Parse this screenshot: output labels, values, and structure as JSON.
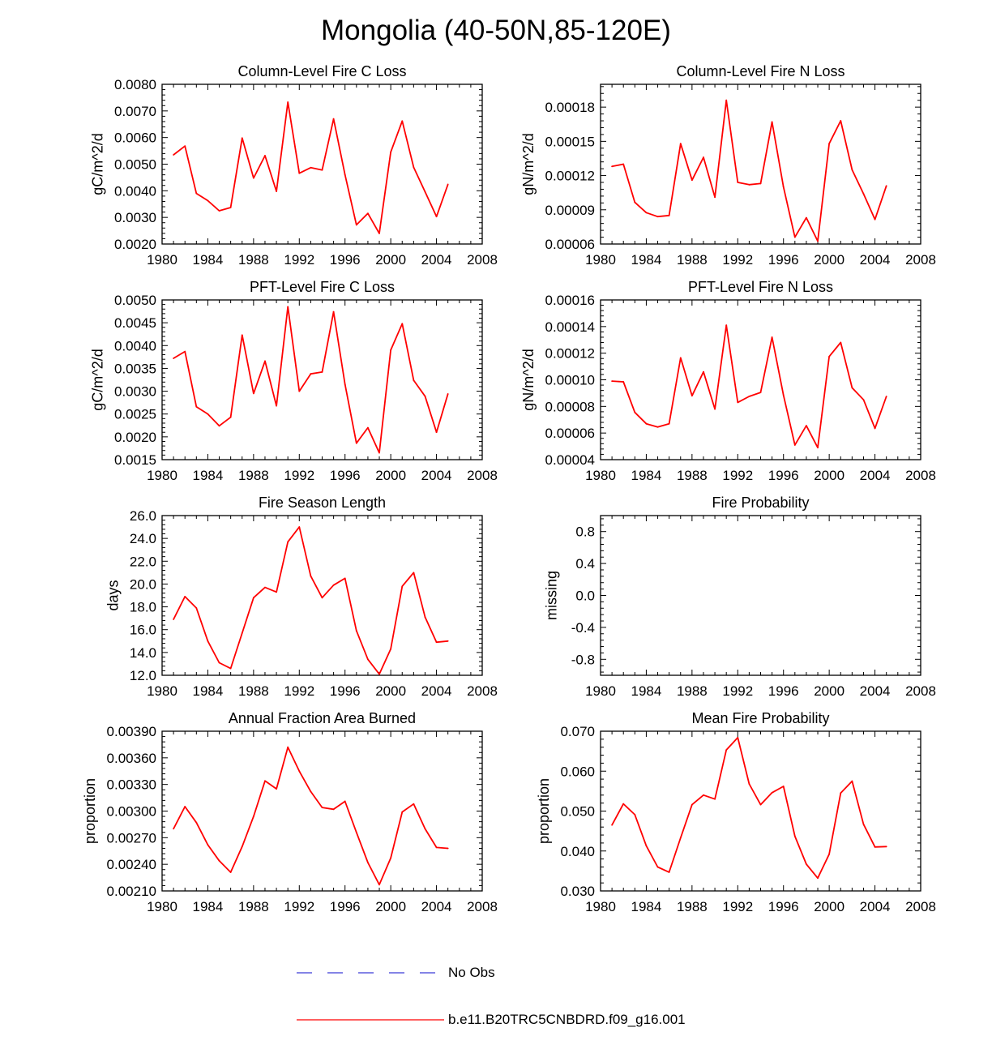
{
  "title": "Mongolia (40-50N,85-120E)",
  "legend": {
    "items": [
      {
        "label": "No Obs",
        "color": "#3a3ad6",
        "style": "dashed"
      },
      {
        "label": "b.e11.B20TRC5CNBDRD.f09_g16.001",
        "color": "#ff0000",
        "style": "solid"
      }
    ]
  },
  "chart_data": [
    {
      "type": "line",
      "title": "Column-Level Fire C Loss",
      "xlabel": "",
      "ylabel": "gC/m^2/d",
      "xlim": [
        1980,
        2008
      ],
      "ylim": [
        0.002,
        0.008
      ],
      "xticks": [
        1980,
        1984,
        1988,
        1992,
        1996,
        2000,
        2004,
        2008
      ],
      "xtick_labels": [
        "1980",
        "1984",
        "1988",
        "1992",
        "1996",
        "2000",
        "2004",
        "2008"
      ],
      "yticks": [
        0.002,
        0.003,
        0.004,
        0.005,
        0.006,
        0.007,
        0.008
      ],
      "ytick_labels": [
        "0.0020",
        "0.0030",
        "0.0040",
        "0.0050",
        "0.0060",
        "0.0070",
        "0.0080"
      ],
      "series": [
        {
          "name": "b.e11.B20TRC5CNBDRD.f09_g16.001",
          "color": "#ff0000",
          "x": [
            1981,
            1982,
            1983,
            1984,
            1985,
            1986,
            1987,
            1988,
            1989,
            1990,
            1991,
            1992,
            1993,
            1994,
            1995,
            1996,
            1997,
            1998,
            1999,
            2000,
            2001,
            2002,
            2003,
            2004,
            2005
          ],
          "values": [
            0.00535,
            0.00568,
            0.0039,
            0.00363,
            0.00325,
            0.00337,
            0.00598,
            0.00448,
            0.00532,
            0.00398,
            0.00733,
            0.00466,
            0.00487,
            0.00478,
            0.0067,
            0.0046,
            0.00272,
            0.00315,
            0.0024,
            0.00545,
            0.00662,
            0.00488,
            0.00396,
            0.00303,
            0.00424
          ]
        }
      ]
    },
    {
      "type": "line",
      "title": "Column-Level Fire N Loss",
      "xlabel": "",
      "ylabel": "gN/m^2/d",
      "xlim": [
        1980,
        2008
      ],
      "ylim": [
        6e-05,
        0.0002
      ],
      "xticks": [
        1980,
        1984,
        1988,
        1992,
        1996,
        2000,
        2004,
        2008
      ],
      "xtick_labels": [
        "1980",
        "1984",
        "1988",
        "1992",
        "1996",
        "2000",
        "2004",
        "2008"
      ],
      "yticks": [
        6e-05,
        9e-05,
        0.00012,
        0.00015,
        0.00018
      ],
      "ytick_labels": [
        "0.00006",
        "0.00009",
        "0.00012",
        "0.00015",
        "0.00018"
      ],
      "series": [
        {
          "name": "b.e11.B20TRC5CNBDRD.f09_g16.001",
          "color": "#ff0000",
          "x": [
            1981,
            1982,
            1983,
            1984,
            1985,
            1986,
            1987,
            1988,
            1989,
            1990,
            1991,
            1992,
            1993,
            1994,
            1995,
            1996,
            1997,
            1998,
            1999,
            2000,
            2001,
            2002,
            2003,
            2004,
            2005
          ],
          "values": [
            0.000128,
            0.00013,
            9.65e-05,
            8.75e-05,
            8.4e-05,
            8.5e-05,
            0.000148,
            0.000116,
            0.000136,
            0.000101,
            0.000186,
            0.000114,
            0.000112,
            0.000113,
            0.000167,
            0.00011,
            6.6e-05,
            8.3e-05,
            6.25e-05,
            0.000148,
            0.000168,
            0.000125,
            0.000104,
            8.15e-05,
            0.000111
          ]
        }
      ]
    },
    {
      "type": "line",
      "title": "PFT-Level Fire C Loss",
      "xlabel": "",
      "ylabel": "gC/m^2/d",
      "xlim": [
        1980,
        2008
      ],
      "ylim": [
        0.0015,
        0.005
      ],
      "xticks": [
        1980,
        1984,
        1988,
        1992,
        1996,
        2000,
        2004,
        2008
      ],
      "xtick_labels": [
        "1980",
        "1984",
        "1988",
        "1992",
        "1996",
        "2000",
        "2004",
        "2008"
      ],
      "yticks": [
        0.0015,
        0.002,
        0.0025,
        0.003,
        0.0035,
        0.004,
        0.0045,
        0.005
      ],
      "ytick_labels": [
        "0.0015",
        "0.0020",
        "0.0025",
        "0.0030",
        "0.0035",
        "0.0040",
        "0.0045",
        "0.0050"
      ],
      "series": [
        {
          "name": "b.e11.B20TRC5CNBDRD.f09_g16.001",
          "color": "#ff0000",
          "x": [
            1981,
            1982,
            1983,
            1984,
            1985,
            1986,
            1987,
            1988,
            1989,
            1990,
            1991,
            1992,
            1993,
            1994,
            1995,
            1996,
            1997,
            1998,
            1999,
            2000,
            2001,
            2002,
            2003,
            2004,
            2005
          ],
          "values": [
            0.00372,
            0.00387,
            0.00266,
            0.0025,
            0.00224,
            0.00243,
            0.00423,
            0.00295,
            0.00366,
            0.00268,
            0.00485,
            0.003,
            0.00338,
            0.00342,
            0.00474,
            0.00315,
            0.00186,
            0.0022,
            0.00165,
            0.0039,
            0.00448,
            0.00324,
            0.00289,
            0.0021,
            0.00294
          ]
        }
      ]
    },
    {
      "type": "line",
      "title": "PFT-Level Fire N Loss",
      "xlabel": "",
      "ylabel": "gN/m^2/d",
      "xlim": [
        1980,
        2008
      ],
      "ylim": [
        4e-05,
        0.00016
      ],
      "xticks": [
        1980,
        1984,
        1988,
        1992,
        1996,
        2000,
        2004,
        2008
      ],
      "xtick_labels": [
        "1980",
        "1984",
        "1988",
        "1992",
        "1996",
        "2000",
        "2004",
        "2008"
      ],
      "yticks": [
        4e-05,
        6e-05,
        8e-05,
        0.0001,
        0.00012,
        0.00014,
        0.00016
      ],
      "ytick_labels": [
        "0.00004",
        "0.00006",
        "0.00008",
        "0.00010",
        "0.00012",
        "0.00014",
        "0.00016"
      ],
      "series": [
        {
          "name": "b.e11.B20TRC5CNBDRD.f09_g16.001",
          "color": "#ff0000",
          "x": [
            1981,
            1982,
            1983,
            1984,
            1985,
            1986,
            1987,
            1988,
            1989,
            1990,
            1991,
            1992,
            1993,
            1994,
            1995,
            1996,
            1997,
            1998,
            1999,
            2000,
            2001,
            2002,
            2003,
            2004,
            2005
          ],
          "values": [
            9.9e-05,
            9.85e-05,
            7.55e-05,
            6.7e-05,
            6.45e-05,
            6.7e-05,
            0.0001165,
            8.8e-05,
            0.000106,
            7.8e-05,
            0.000141,
            8.3e-05,
            8.75e-05,
            9.05e-05,
            0.000132,
            8.85e-05,
            5.1e-05,
            6.55e-05,
            4.9e-05,
            0.0001175,
            0.000128,
            9.4e-05,
            8.5e-05,
            6.35e-05,
            8.75e-05
          ]
        }
      ]
    },
    {
      "type": "line",
      "title": "Fire Season Length",
      "xlabel": "",
      "ylabel": "days",
      "xlim": [
        1980,
        2008
      ],
      "ylim": [
        12.0,
        26.0
      ],
      "xticks": [
        1980,
        1984,
        1988,
        1992,
        1996,
        2000,
        2004,
        2008
      ],
      "xtick_labels": [
        "1980",
        "1984",
        "1988",
        "1992",
        "1996",
        "2000",
        "2004",
        "2008"
      ],
      "yticks": [
        12,
        14,
        16,
        18,
        20,
        22,
        24,
        26
      ],
      "ytick_labels": [
        "12.0",
        "14.0",
        "16.0",
        "18.0",
        "20.0",
        "22.0",
        "24.0",
        "26.0"
      ],
      "series": [
        {
          "name": "b.e11.B20TRC5CNBDRD.f09_g16.001",
          "color": "#ff0000",
          "x": [
            1981,
            1982,
            1983,
            1984,
            1985,
            1986,
            1987,
            1988,
            1989,
            1990,
            1991,
            1992,
            1993,
            1994,
            1995,
            1996,
            1997,
            1998,
            1999,
            2000,
            2001,
            2002,
            2003,
            2004,
            2005
          ],
          "values": [
            16.9,
            18.9,
            17.9,
            15.0,
            13.1,
            12.6,
            15.7,
            18.8,
            19.7,
            19.3,
            23.7,
            25.0,
            20.7,
            18.8,
            19.9,
            20.5,
            15.9,
            13.4,
            12.1,
            14.3,
            19.8,
            21.0,
            17.1,
            14.9,
            15.0
          ]
        }
      ]
    },
    {
      "type": "line",
      "title": "Fire Probability",
      "xlabel": "",
      "ylabel": "missing",
      "xlim": [
        1980,
        2008
      ],
      "ylim": [
        -1.0,
        1.0
      ],
      "xticks": [
        1980,
        1984,
        1988,
        1992,
        1996,
        2000,
        2004,
        2008
      ],
      "xtick_labels": [
        "1980",
        "1984",
        "1988",
        "1992",
        "1996",
        "2000",
        "2004",
        "2008"
      ],
      "yticks": [
        -0.8,
        -0.4,
        0.0,
        0.4,
        0.8
      ],
      "ytick_labels": [
        "-0.8",
        "-0.4",
        "0.0",
        "0.4",
        "0.8"
      ],
      "series": []
    },
    {
      "type": "line",
      "title": "Annual Fraction Area Burned",
      "xlabel": "",
      "ylabel": "proportion",
      "xlim": [
        1980,
        2008
      ],
      "ylim": [
        0.0021,
        0.0039
      ],
      "xticks": [
        1980,
        1984,
        1988,
        1992,
        1996,
        2000,
        2004,
        2008
      ],
      "xtick_labels": [
        "1980",
        "1984",
        "1988",
        "1992",
        "1996",
        "2000",
        "2004",
        "2008"
      ],
      "yticks": [
        0.0021,
        0.0024,
        0.0027,
        0.003,
        0.0033,
        0.0036,
        0.0039
      ],
      "ytick_labels": [
        "0.00210",
        "0.00240",
        "0.00270",
        "0.00300",
        "0.00330",
        "0.00360",
        "0.00390"
      ],
      "series": [
        {
          "name": "b.e11.B20TRC5CNBDRD.f09_g16.001",
          "color": "#ff0000",
          "x": [
            1981,
            1982,
            1983,
            1984,
            1985,
            1986,
            1987,
            1988,
            1989,
            1990,
            1991,
            1992,
            1993,
            1994,
            1995,
            1996,
            1997,
            1998,
            1999,
            2000,
            2001,
            2002,
            2003,
            2004,
            2005
          ],
          "values": [
            0.0028,
            0.00305,
            0.00287,
            0.00262,
            0.00244,
            0.00231,
            0.0026,
            0.00294,
            0.00334,
            0.00325,
            0.00372,
            0.00345,
            0.00322,
            0.00304,
            0.00302,
            0.00311,
            0.00276,
            0.00242,
            0.00217,
            0.00247,
            0.00299,
            0.00308,
            0.0028,
            0.00259,
            0.00258
          ]
        }
      ]
    },
    {
      "type": "line",
      "title": "Mean Fire Probability",
      "xlabel": "",
      "ylabel": "proportion",
      "xlim": [
        1980,
        2008
      ],
      "ylim": [
        0.03,
        0.07
      ],
      "xticks": [
        1980,
        1984,
        1988,
        1992,
        1996,
        2000,
        2004,
        2008
      ],
      "xtick_labels": [
        "1980",
        "1984",
        "1988",
        "1992",
        "1996",
        "2000",
        "2004",
        "2008"
      ],
      "yticks": [
        0.03,
        0.04,
        0.05,
        0.06,
        0.07
      ],
      "ytick_labels": [
        "0.030",
        "0.040",
        "0.050",
        "0.060",
        "0.070"
      ],
      "series": [
        {
          "name": "b.e11.B20TRC5CNBDRD.f09_g16.001",
          "color": "#ff0000",
          "x": [
            1981,
            1982,
            1983,
            1984,
            1985,
            1986,
            1987,
            1988,
            1989,
            1990,
            1991,
            1992,
            1993,
            1994,
            1995,
            1996,
            1997,
            1998,
            1999,
            2000,
            2001,
            2002,
            2003,
            2004,
            2005
          ],
          "values": [
            0.0465,
            0.0518,
            0.0491,
            0.0413,
            0.036,
            0.0347,
            0.0433,
            0.0516,
            0.054,
            0.053,
            0.0653,
            0.0684,
            0.0568,
            0.0516,
            0.0546,
            0.0562,
            0.0437,
            0.0367,
            0.0332,
            0.0392,
            0.0545,
            0.0575,
            0.0467,
            0.041,
            0.0411
          ]
        }
      ]
    }
  ]
}
